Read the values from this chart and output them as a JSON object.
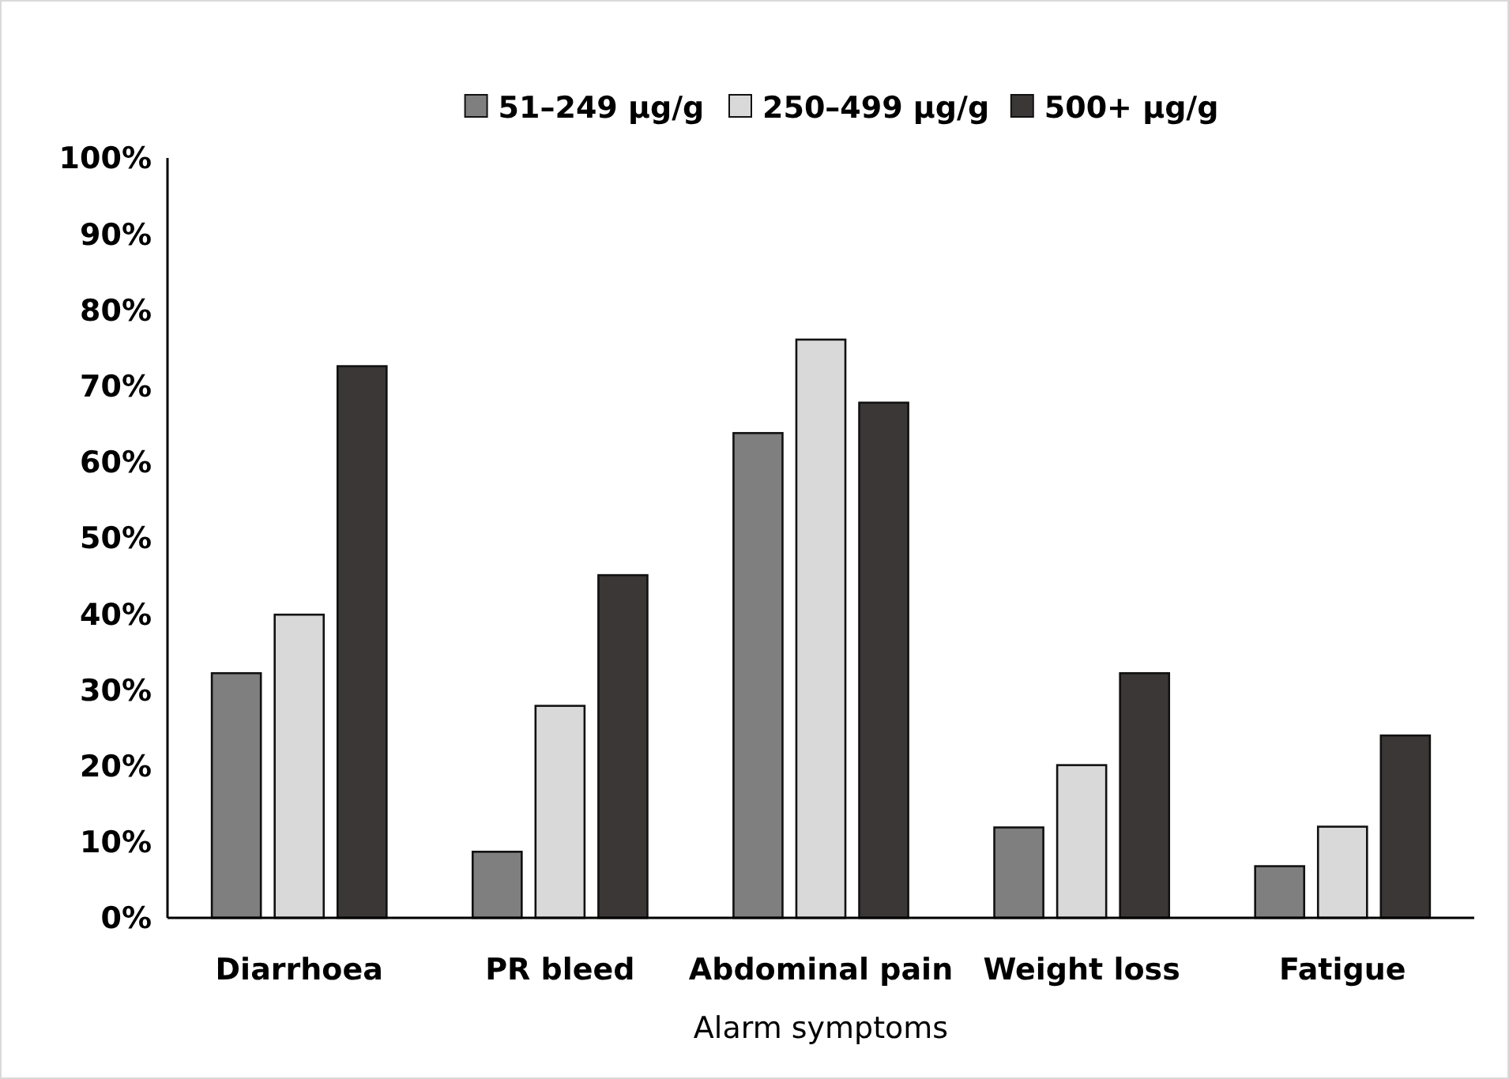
{
  "chart_data": {
    "type": "bar",
    "xlabel": "Alarm symptoms",
    "categories": [
      "Diarrhoea",
      "PR bleed",
      "Abdominal pain",
      "Weight loss",
      "Fatigue"
    ],
    "series": [
      {
        "name": "51–249 µg/g",
        "color": "#7f7f7f",
        "values": [
          32.2,
          8.7,
          63.8,
          11.9,
          6.8
        ]
      },
      {
        "name": "250–499 µg/g",
        "color": "#d9d9d9",
        "values": [
          39.9,
          27.9,
          76.1,
          20.1,
          12.0
        ]
      },
      {
        "name": "500+ µg/g",
        "color": "#3b3737",
        "values": [
          72.6,
          45.1,
          67.8,
          32.2,
          24.0
        ]
      }
    ],
    "ylim": [
      0,
      100
    ],
    "yticks": [
      {
        "value": 0,
        "label": "0%"
      },
      {
        "value": 10,
        "label": "10%"
      },
      {
        "value": 20,
        "label": "20%"
      },
      {
        "value": 30,
        "label": "30%"
      },
      {
        "value": 40,
        "label": "40%"
      },
      {
        "value": 50,
        "label": "50%"
      },
      {
        "value": 60,
        "label": "60%"
      },
      {
        "value": 70,
        "label": "70%"
      },
      {
        "value": 80,
        "label": "80%"
      },
      {
        "value": 90,
        "label": "90%"
      },
      {
        "value": 100,
        "label": "100%"
      }
    ],
    "grid": false,
    "legend": "top"
  }
}
